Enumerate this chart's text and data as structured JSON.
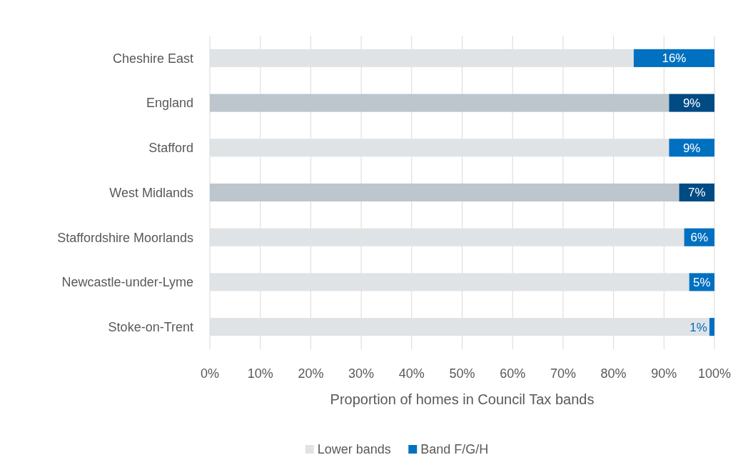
{
  "chart_data": {
    "type": "bar",
    "orientation": "horizontal",
    "stacked": true,
    "xlabel": "Proportion of homes in Council Tax bands",
    "categories": [
      "Cheshire East",
      "England",
      "Stafford",
      "West Midlands",
      "Staffordshire Moorlands",
      "Newcastle-under-Lyme",
      "Stoke-on-Trent"
    ],
    "series": [
      {
        "name": "Lower bands",
        "color": "#dfe3e6",
        "colors": [
          "#dfe3e6",
          "#bcc6cc",
          "#dfe3e6",
          "#bcc6cc",
          "#dfe3e6",
          "#dfe3e6",
          "#dfe3e6"
        ],
        "values": [
          84,
          91,
          91,
          93,
          94,
          95,
          99
        ]
      },
      {
        "name": "Band F/G/H",
        "color": "#0070c0",
        "colors": [
          "#0070c0",
          "#004b84",
          "#0070c0",
          "#004b84",
          "#0070c0",
          "#0070c0",
          "#0070c0"
        ],
        "values": [
          16,
          9,
          9,
          7,
          6,
          5,
          1
        ],
        "value_labels": [
          "16%",
          "9%",
          "9%",
          "7%",
          "6%",
          "5%",
          "1%"
        ]
      }
    ],
    "xlim": [
      0,
      100
    ],
    "xticks": [
      {
        "value": 0,
        "label": "0%"
      },
      {
        "value": 10,
        "label": "10%"
      },
      {
        "value": 20,
        "label": "20%"
      },
      {
        "value": 30,
        "label": "30%"
      },
      {
        "value": 40,
        "label": "40%"
      },
      {
        "value": 50,
        "label": "50%"
      },
      {
        "value": 60,
        "label": "60%"
      },
      {
        "value": 70,
        "label": "70%"
      },
      {
        "value": 80,
        "label": "80%"
      },
      {
        "value": 90,
        "label": "90%"
      },
      {
        "value": 100,
        "label": "100%"
      }
    ],
    "grid": "x",
    "legend": "bottom"
  }
}
